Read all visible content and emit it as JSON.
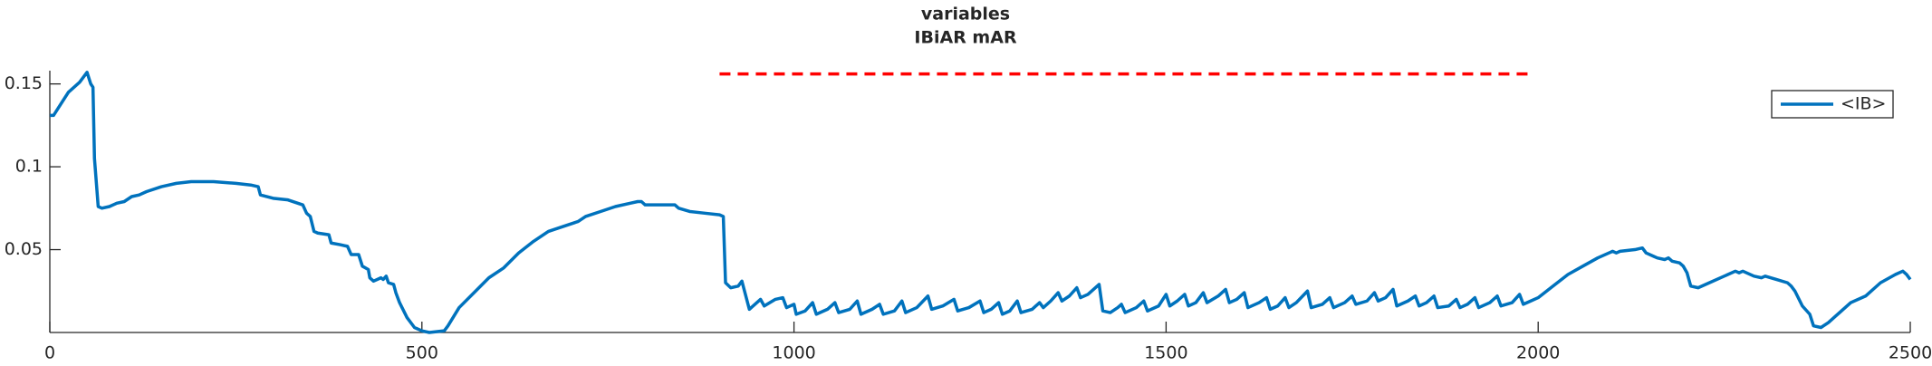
{
  "chart_data": {
    "type": "line",
    "title": "variables",
    "subtitle": "IBiAR mAR",
    "xlim": [
      0,
      2500
    ],
    "xticks": [
      0,
      500,
      1000,
      1500,
      2000,
      2500
    ],
    "ylim": [
      0,
      0.158
    ],
    "yticks": [
      0.05,
      0.1,
      0.15
    ],
    "legend": "northeast",
    "series": [
      {
        "name": "<IB>",
        "color": "#0072bd",
        "x": [
          0,
          5,
          15,
          25,
          40,
          50,
          55,
          58,
          60,
          65,
          70,
          80,
          90,
          100,
          110,
          120,
          130,
          150,
          170,
          190,
          220,
          250,
          270,
          280,
          283,
          300,
          320,
          340,
          345,
          350,
          355,
          360,
          375,
          378,
          390,
          400,
          405,
          415,
          420,
          428,
          430,
          435,
          445,
          448,
          452,
          455,
          462,
          465,
          470,
          480,
          490,
          500,
          510,
          530,
          535,
          550,
          570,
          590,
          610,
          630,
          650,
          670,
          690,
          710,
          720,
          740,
          760,
          780,
          790,
          795,
          800,
          820,
          840,
          845,
          860,
          880,
          900,
          905,
          908,
          915,
          925,
          930,
          940,
          955,
          960,
          975,
          985,
          990,
          1000,
          1003,
          1015,
          1025,
          1030,
          1045,
          1055,
          1060,
          1075,
          1085,
          1090,
          1105,
          1115,
          1120,
          1135,
          1145,
          1150,
          1165,
          1180,
          1185,
          1200,
          1215,
          1220,
          1235,
          1250,
          1255,
          1265,
          1275,
          1280,
          1290,
          1300,
          1305,
          1320,
          1330,
          1335,
          1345,
          1355,
          1360,
          1370,
          1380,
          1385,
          1395,
          1410,
          1415,
          1425,
          1435,
          1440,
          1445,
          1460,
          1470,
          1475,
          1490,
          1500,
          1505,
          1515,
          1525,
          1530,
          1540,
          1550,
          1555,
          1570,
          1580,
          1585,
          1595,
          1605,
          1610,
          1625,
          1635,
          1640,
          1650,
          1660,
          1665,
          1675,
          1690,
          1695,
          1710,
          1720,
          1725,
          1740,
          1750,
          1755,
          1770,
          1780,
          1785,
          1795,
          1805,
          1810,
          1825,
          1835,
          1840,
          1850,
          1860,
          1865,
          1880,
          1890,
          1895,
          1905,
          1915,
          1920,
          1935,
          1945,
          1950,
          1965,
          1975,
          1980,
          1990,
          2000,
          2020,
          2040,
          2060,
          2080,
          2100,
          2105,
          2110,
          2130,
          2140,
          2145,
          2155,
          2160,
          2170,
          2175,
          2180,
          2190,
          2195,
          2200,
          2205,
          2215,
          2230,
          2250,
          2265,
          2270,
          2275,
          2290,
          2300,
          2305,
          2320,
          2335,
          2340,
          2345,
          2355,
          2365,
          2370,
          2380,
          2390,
          2400,
          2420,
          2440,
          2460,
          2480,
          2490,
          2495,
          2500
        ],
        "values": [
          0.131,
          0.131,
          0.138,
          0.145,
          0.151,
          0.157,
          0.15,
          0.148,
          0.105,
          0.076,
          0.075,
          0.076,
          0.078,
          0.079,
          0.082,
          0.083,
          0.085,
          0.088,
          0.09,
          0.091,
          0.091,
          0.09,
          0.089,
          0.088,
          0.083,
          0.081,
          0.08,
          0.077,
          0.072,
          0.07,
          0.061,
          0.06,
          0.059,
          0.054,
          0.053,
          0.052,
          0.047,
          0.047,
          0.04,
          0.038,
          0.033,
          0.031,
          0.033,
          0.032,
          0.034,
          0.03,
          0.029,
          0.024,
          0.018,
          0.009,
          0.003,
          0.001,
          0.0,
          0.001,
          0.004,
          0.015,
          0.024,
          0.033,
          0.039,
          0.048,
          0.055,
          0.061,
          0.064,
          0.067,
          0.07,
          0.073,
          0.076,
          0.078,
          0.079,
          0.079,
          0.077,
          0.077,
          0.077,
          0.075,
          0.073,
          0.072,
          0.071,
          0.07,
          0.03,
          0.027,
          0.028,
          0.031,
          0.014,
          0.02,
          0.016,
          0.02,
          0.021,
          0.015,
          0.017,
          0.011,
          0.013,
          0.018,
          0.011,
          0.014,
          0.018,
          0.012,
          0.014,
          0.019,
          0.011,
          0.014,
          0.017,
          0.011,
          0.013,
          0.019,
          0.012,
          0.015,
          0.022,
          0.014,
          0.016,
          0.02,
          0.013,
          0.015,
          0.019,
          0.012,
          0.014,
          0.018,
          0.011,
          0.013,
          0.019,
          0.012,
          0.014,
          0.018,
          0.015,
          0.019,
          0.024,
          0.019,
          0.022,
          0.027,
          0.021,
          0.023,
          0.029,
          0.013,
          0.012,
          0.015,
          0.017,
          0.012,
          0.015,
          0.019,
          0.013,
          0.016,
          0.023,
          0.016,
          0.019,
          0.023,
          0.016,
          0.018,
          0.024,
          0.018,
          0.022,
          0.026,
          0.018,
          0.02,
          0.024,
          0.015,
          0.018,
          0.021,
          0.014,
          0.016,
          0.021,
          0.015,
          0.018,
          0.025,
          0.015,
          0.017,
          0.021,
          0.015,
          0.018,
          0.022,
          0.017,
          0.019,
          0.024,
          0.019,
          0.021,
          0.026,
          0.016,
          0.019,
          0.022,
          0.016,
          0.018,
          0.022,
          0.015,
          0.016,
          0.02,
          0.015,
          0.017,
          0.021,
          0.015,
          0.018,
          0.022,
          0.016,
          0.018,
          0.023,
          0.017,
          0.019,
          0.021,
          0.028,
          0.035,
          0.04,
          0.045,
          0.049,
          0.048,
          0.049,
          0.05,
          0.051,
          0.048,
          0.046,
          0.045,
          0.044,
          0.045,
          0.043,
          0.042,
          0.04,
          0.036,
          0.028,
          0.027,
          0.03,
          0.034,
          0.037,
          0.036,
          0.037,
          0.034,
          0.033,
          0.034,
          0.032,
          0.03,
          0.028,
          0.025,
          0.016,
          0.011,
          0.004,
          0.003,
          0.006,
          0.01,
          0.018,
          0.022,
          0.03,
          0.035,
          0.037,
          0.035,
          0.032
        ]
      }
    ],
    "reference_line": {
      "color": "#ff0000",
      "x": [
        900,
        1990
      ],
      "values": [
        0.156,
        0.156
      ]
    }
  }
}
